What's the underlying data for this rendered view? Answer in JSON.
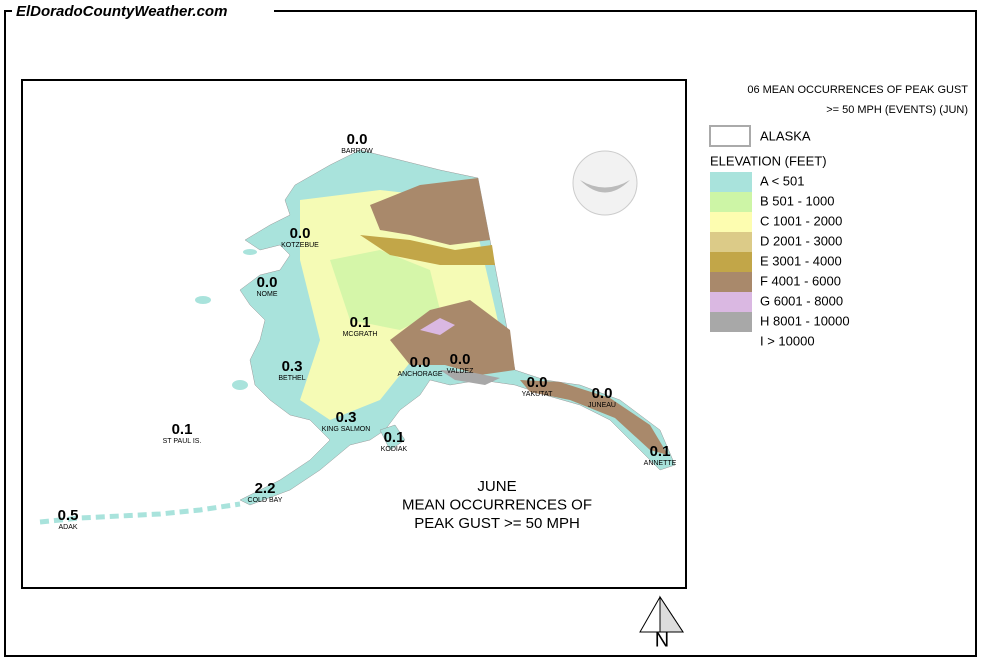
{
  "header": {
    "title": "ElDoradoCountyWeather.com"
  },
  "legend": {
    "title_lines": [
      "06 MEAN OCCURRENCES OF PEAK GUST",
      ">= 50 MPH (EVENTS) (JUN)"
    ],
    "boundary_label": "ALASKA",
    "elevation_title": "ELEVATION (FEET)",
    "entries": [
      {
        "label": "A < 501",
        "color": "#a9e3dc"
      },
      {
        "label": "B 501 - 1000",
        "color": "#cdf5a6"
      },
      {
        "label": "C 1001 - 2000",
        "color": "#fdfdb0"
      },
      {
        "label": "D 2001 - 3000",
        "color": "#dccb88"
      },
      {
        "label": "E 3001 - 4000",
        "color": "#c2a648"
      },
      {
        "label": "F 4001 - 6000",
        "color": "#a9896b"
      },
      {
        "label": "G 6001 - 8000",
        "color": "#dab8e2"
      },
      {
        "label": "H 8001 - 10000",
        "color": "#a8a8a8"
      },
      {
        "label": "I > 10000",
        "color": "#ffffff"
      }
    ]
  },
  "stations": [
    {
      "value": "0.0",
      "name": "BARROW"
    },
    {
      "value": "0.0",
      "name": "KOTZEBUE"
    },
    {
      "value": "0.0",
      "name": "NOME"
    },
    {
      "value": "0.1",
      "name": "MCGRATH"
    },
    {
      "value": "0.3",
      "name": "BETHEL"
    },
    {
      "value": "0.0",
      "name": "ANCHORAGE"
    },
    {
      "value": "0.0",
      "name": "VALDEZ"
    },
    {
      "value": "0.0",
      "name": "YAKUTAT"
    },
    {
      "value": "0.0",
      "name": "JUNEAU"
    },
    {
      "value": "0.1",
      "name": "ANNETTE"
    },
    {
      "value": "0.1",
      "name": "ST PAUL IS."
    },
    {
      "value": "0.3",
      "name": "KING SALMON"
    },
    {
      "value": "0.1",
      "name": "KODIAK"
    },
    {
      "value": "2.2",
      "name": "COLD BAY"
    },
    {
      "value": "0.5",
      "name": "ADAK"
    }
  ],
  "caption": {
    "lines": [
      "JUNE",
      "MEAN OCCURRENCES OF",
      "PEAK GUST >= 50 MPH"
    ]
  },
  "compass": {
    "label": "N"
  }
}
